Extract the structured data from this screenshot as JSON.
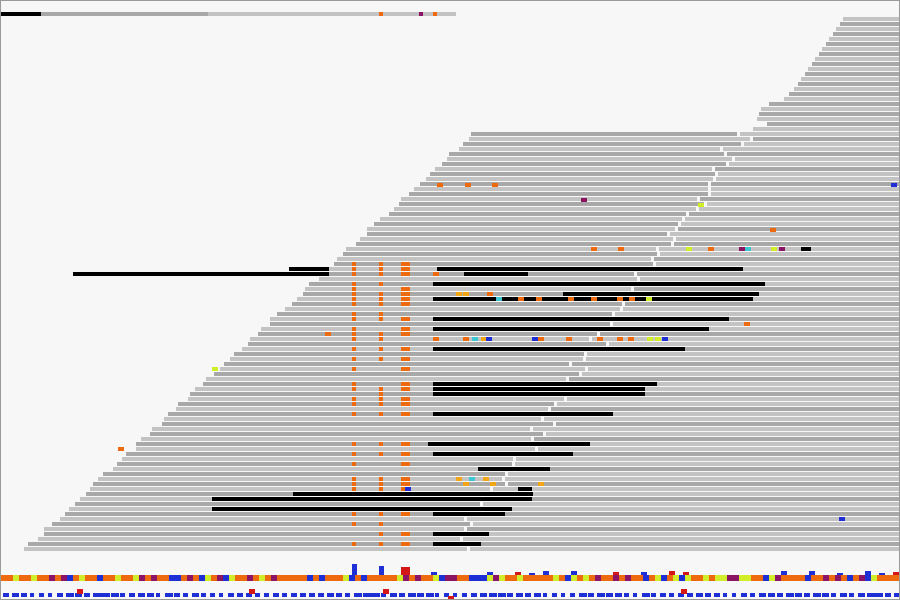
{
  "colors": {
    "background": "#f7f7f7",
    "read_light": "#c3c3c3",
    "read_dark": "#a8a8a8",
    "read_black": "#000000",
    "mismatch_orange": "#ee6a0e",
    "mismatch_amber": "#f2a515",
    "mismatch_purple": "#8b1464",
    "mismatch_cyan": "#3ec5d2",
    "mismatch_yellow": "#d2ee2a",
    "mismatch_blue": "#1e2fd6",
    "mismatch_red": "#d41717",
    "coverage_blue": "#1e2fd6",
    "coverage_red": "#d41717",
    "annotation_blue": "#1e2fd6",
    "annotation_red": "#d41717"
  },
  "icons": {
    "reads": "read-bar-glyph",
    "mismatch": "colored-square-glyph"
  }
}
